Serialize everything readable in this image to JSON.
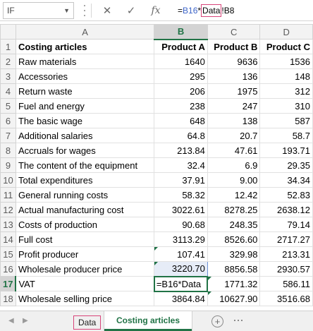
{
  "formula_bar": {
    "name_box": "IF",
    "cancel_glyph": "✕",
    "enter_glyph": "✓",
    "fx_glyph": "fx",
    "formula_prefix": "=",
    "formula_ref1": "B16",
    "formula_op": "*",
    "formula_sheet": "Data",
    "formula_rest": "!B8"
  },
  "columns": [
    "A",
    "B",
    "C",
    "D"
  ],
  "active_column": "B",
  "active_row": "17",
  "rows": [
    {
      "n": "1",
      "a": "Costing articles",
      "b": "Product A",
      "c": "Product B",
      "d": "Product C"
    },
    {
      "n": "2",
      "a": "Raw materials",
      "b": "1640",
      "c": "9636",
      "d": "1536"
    },
    {
      "n": "3",
      "a": "Accessories",
      "b": "295",
      "c": "136",
      "d": "148"
    },
    {
      "n": "4",
      "a": "Return waste",
      "b": "206",
      "c": "1975",
      "d": "312"
    },
    {
      "n": "5",
      "a": "Fuel and energy",
      "b": "238",
      "c": "247",
      "d": "310"
    },
    {
      "n": "6",
      "a": "The basic wage",
      "b": "648",
      "c": "138",
      "d": "587"
    },
    {
      "n": "7",
      "a": "Additional salaries",
      "b": "64.8",
      "c": "20.7",
      "d": "58.7"
    },
    {
      "n": "8",
      "a": "Accruals for wages",
      "b": "213.84",
      "c": "47.61",
      "d": "193.71"
    },
    {
      "n": "9",
      "a": "The content of the equipment",
      "b": "32.4",
      "c": "6.9",
      "d": "29.35"
    },
    {
      "n": "10",
      "a": "Total expenditures",
      "b": "37.91",
      "c": "9.00",
      "d": "34.34"
    },
    {
      "n": "11",
      "a": "General running costs",
      "b": "58.32",
      "c": "12.42",
      "d": "52.83"
    },
    {
      "n": "12",
      "a": "Actual manufacturing cost",
      "b": "3022.61",
      "c": "8278.25",
      "d": "2638.12"
    },
    {
      "n": "13",
      "a": "Costs of production",
      "b": "90.68",
      "c": "248.35",
      "d": "79.14"
    },
    {
      "n": "14",
      "a": "Full cost",
      "b": "3113.29",
      "c": "8526.60",
      "d": "2717.27"
    },
    {
      "n": "15",
      "a": "Profit producer",
      "b": "107.41",
      "c": "329.98",
      "d": "213.31"
    },
    {
      "n": "16",
      "a": "Wholesale producer price",
      "b": "3220.70",
      "c": "8856.58",
      "d": "2930.57"
    },
    {
      "n": "17",
      "a": "VAT",
      "b": "=B16*Data",
      "c": "1771.32",
      "d": "586.11"
    },
    {
      "n": "18",
      "a": "Wholesale selling price",
      "b": "3864.84",
      "c": "10627.90",
      "d": "3516.68"
    }
  ],
  "sheet_tabs": {
    "prev_glyph": "◀",
    "next_glyph": "▶",
    "tab1": "Data",
    "tab2": "Costing articles",
    "add_glyph": "+"
  },
  "colors": {
    "excel_green": "#217346",
    "ref_blue": "#3c64c8",
    "ref_pink": "#d8447a"
  }
}
